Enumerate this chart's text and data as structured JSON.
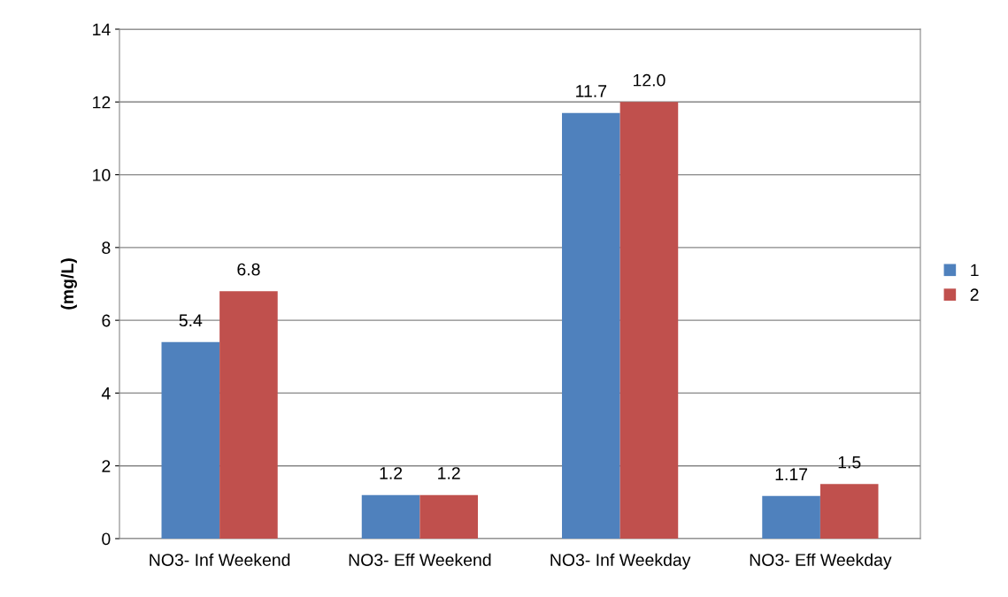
{
  "chart_data": {
    "type": "bar",
    "ylabel": "(mg/L)",
    "categories": [
      "NO3- Inf Weekend",
      "NO3- Eff Weekend",
      "NO3- Inf Weekday",
      "NO3- Eff Weekday"
    ],
    "series": [
      {
        "name": "1",
        "color": "#4f81bd",
        "values": [
          5.4,
          1.2,
          11.7,
          1.17
        ],
        "value_labels": [
          "5.4",
          "1.2",
          "11.7",
          "1.17"
        ]
      },
      {
        "name": "2",
        "color": "#c0504d",
        "values": [
          6.8,
          1.2,
          12.0,
          1.5
        ],
        "value_labels": [
          "6.8",
          "1.2",
          "12.0",
          "1.5"
        ]
      }
    ],
    "ylim": [
      0,
      14
    ],
    "yticks": [
      0,
      2,
      4,
      6,
      8,
      10,
      12,
      14
    ],
    "grid": "y",
    "legend": "right"
  }
}
